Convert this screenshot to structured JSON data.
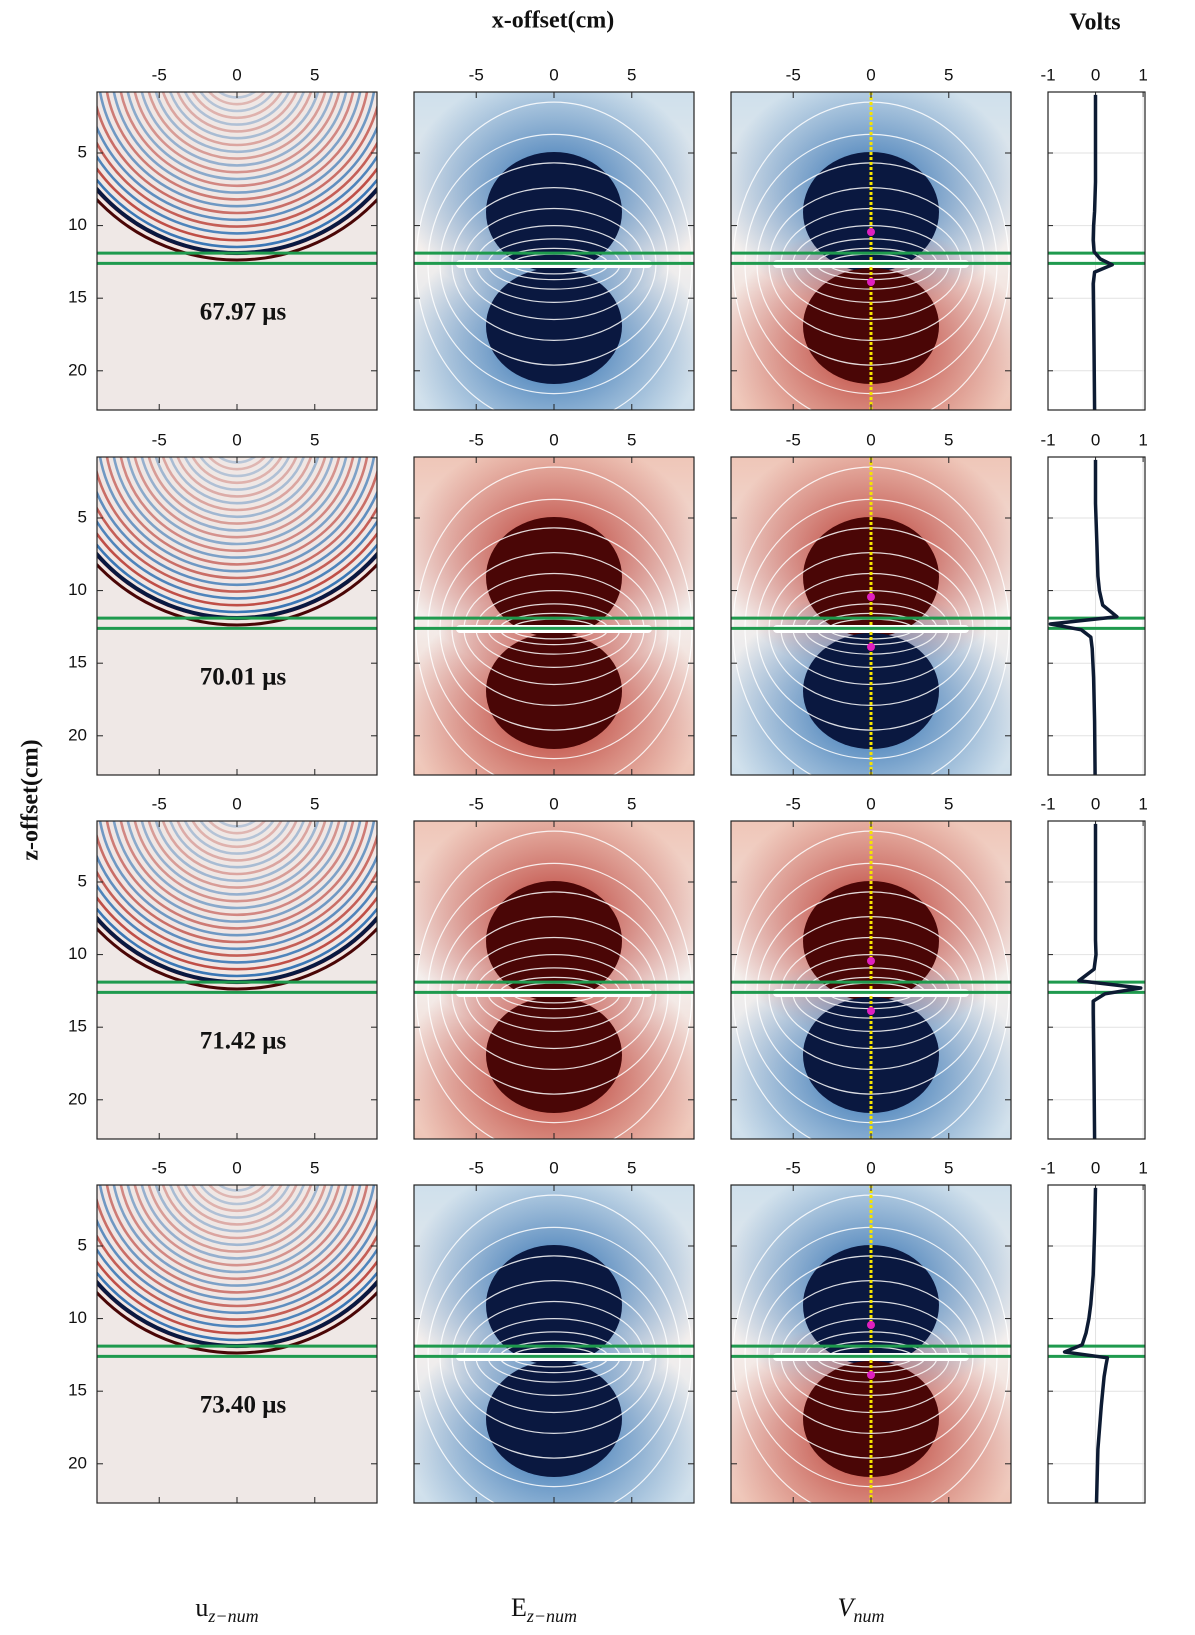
{
  "title": "x-offset(cm)",
  "volts_title": "Volts",
  "ylabel": "z-offset(cm)",
  "column_labels": [
    {
      "base": "u",
      "sub": "z−num"
    },
    {
      "base": "E",
      "sub": "z−num"
    },
    {
      "base": "V",
      "sub": "num"
    }
  ],
  "chart_data": {
    "type": "field-panels",
    "xlim": [
      -9,
      9
    ],
    "xticks": [
      -5,
      0,
      5
    ],
    "ylim": [
      0.8,
      22.7
    ],
    "yticks": [
      5,
      10,
      15,
      20
    ],
    "volts_xlim": [
      -1,
      1.04
    ],
    "volts_xticks": [
      -1,
      0,
      1
    ],
    "interfaces": [
      11.9,
      12.6
    ],
    "z": [
      1,
      4,
      7,
      9,
      10,
      11,
      11.8,
      12.3,
      12.7,
      13.2,
      14,
      16,
      19,
      22.7
    ],
    "rows": [
      {
        "time_label": "67.97 μs",
        "volts": [
          0,
          0,
          0,
          -0.02,
          -0.04,
          -0.05,
          -0.03,
          0.1,
          0.35,
          -0.02,
          -0.05,
          -0.04,
          -0.03,
          -0.02
        ]
      },
      {
        "time_label": "70.01 μs",
        "volts": [
          0,
          0,
          0.03,
          0.05,
          0.08,
          0.15,
          0.45,
          -0.95,
          -0.3,
          -0.1,
          -0.07,
          -0.04,
          -0.02,
          -0.01
        ]
      },
      {
        "time_label": "71.42 μs",
        "volts": [
          0,
          0,
          0,
          0,
          0.01,
          -0.03,
          -0.35,
          0.95,
          0.2,
          -0.05,
          -0.05,
          -0.04,
          -0.03,
          -0.02
        ]
      },
      {
        "time_label": "73.40 μs",
        "volts": [
          0,
          -0.02,
          -0.05,
          -0.1,
          -0.14,
          -0.2,
          -0.28,
          -0.65,
          0.25,
          0.22,
          0.18,
          0.12,
          0.05,
          0.02
        ]
      }
    ],
    "trace_color": "#0d1b33",
    "interface_color": "#1f9a4e",
    "grid": true
  }
}
